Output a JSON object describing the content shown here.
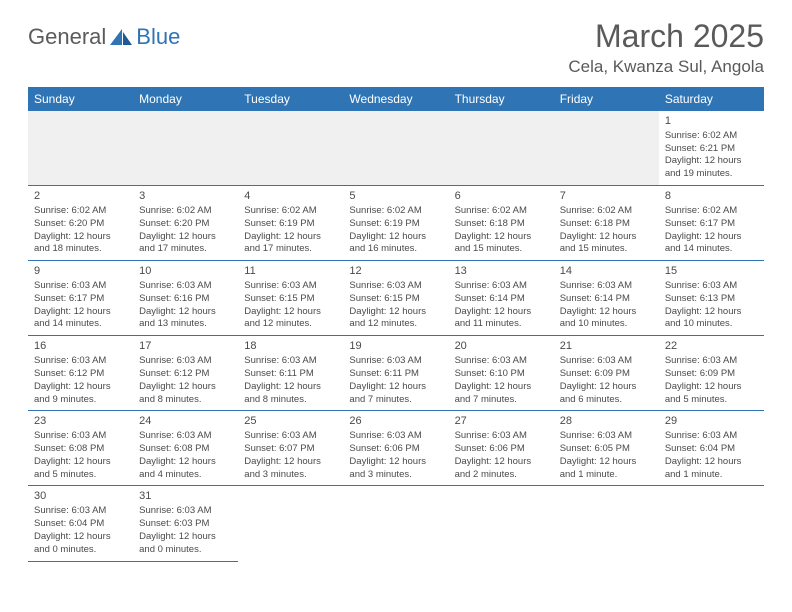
{
  "logo": {
    "text1": "General",
    "text2": "Blue"
  },
  "title": "March 2025",
  "location": "Cela, Kwanza Sul, Angola",
  "colors": {
    "header_bg": "#2f74b5",
    "header_text": "#ffffff",
    "text": "#4a4a4a",
    "border": "#2f74b5",
    "blank_bg": "#f0f0f0"
  },
  "weekdays": [
    "Sunday",
    "Monday",
    "Tuesday",
    "Wednesday",
    "Thursday",
    "Friday",
    "Saturday"
  ],
  "weeks": [
    [
      null,
      null,
      null,
      null,
      null,
      null,
      {
        "d": "1",
        "sr": "6:02 AM",
        "ss": "6:21 PM",
        "dl": "12 hours and 19 minutes."
      }
    ],
    [
      {
        "d": "2",
        "sr": "6:02 AM",
        "ss": "6:20 PM",
        "dl": "12 hours and 18 minutes."
      },
      {
        "d": "3",
        "sr": "6:02 AM",
        "ss": "6:20 PM",
        "dl": "12 hours and 17 minutes."
      },
      {
        "d": "4",
        "sr": "6:02 AM",
        "ss": "6:19 PM",
        "dl": "12 hours and 17 minutes."
      },
      {
        "d": "5",
        "sr": "6:02 AM",
        "ss": "6:19 PM",
        "dl": "12 hours and 16 minutes."
      },
      {
        "d": "6",
        "sr": "6:02 AM",
        "ss": "6:18 PM",
        "dl": "12 hours and 15 minutes."
      },
      {
        "d": "7",
        "sr": "6:02 AM",
        "ss": "6:18 PM",
        "dl": "12 hours and 15 minutes."
      },
      {
        "d": "8",
        "sr": "6:02 AM",
        "ss": "6:17 PM",
        "dl": "12 hours and 14 minutes."
      }
    ],
    [
      {
        "d": "9",
        "sr": "6:03 AM",
        "ss": "6:17 PM",
        "dl": "12 hours and 14 minutes."
      },
      {
        "d": "10",
        "sr": "6:03 AM",
        "ss": "6:16 PM",
        "dl": "12 hours and 13 minutes."
      },
      {
        "d": "11",
        "sr": "6:03 AM",
        "ss": "6:15 PM",
        "dl": "12 hours and 12 minutes."
      },
      {
        "d": "12",
        "sr": "6:03 AM",
        "ss": "6:15 PM",
        "dl": "12 hours and 12 minutes."
      },
      {
        "d": "13",
        "sr": "6:03 AM",
        "ss": "6:14 PM",
        "dl": "12 hours and 11 minutes."
      },
      {
        "d": "14",
        "sr": "6:03 AM",
        "ss": "6:14 PM",
        "dl": "12 hours and 10 minutes."
      },
      {
        "d": "15",
        "sr": "6:03 AM",
        "ss": "6:13 PM",
        "dl": "12 hours and 10 minutes."
      }
    ],
    [
      {
        "d": "16",
        "sr": "6:03 AM",
        "ss": "6:12 PM",
        "dl": "12 hours and 9 minutes."
      },
      {
        "d": "17",
        "sr": "6:03 AM",
        "ss": "6:12 PM",
        "dl": "12 hours and 8 minutes."
      },
      {
        "d": "18",
        "sr": "6:03 AM",
        "ss": "6:11 PM",
        "dl": "12 hours and 8 minutes."
      },
      {
        "d": "19",
        "sr": "6:03 AM",
        "ss": "6:11 PM",
        "dl": "12 hours and 7 minutes."
      },
      {
        "d": "20",
        "sr": "6:03 AM",
        "ss": "6:10 PM",
        "dl": "12 hours and 7 minutes."
      },
      {
        "d": "21",
        "sr": "6:03 AM",
        "ss": "6:09 PM",
        "dl": "12 hours and 6 minutes."
      },
      {
        "d": "22",
        "sr": "6:03 AM",
        "ss": "6:09 PM",
        "dl": "12 hours and 5 minutes."
      }
    ],
    [
      {
        "d": "23",
        "sr": "6:03 AM",
        "ss": "6:08 PM",
        "dl": "12 hours and 5 minutes."
      },
      {
        "d": "24",
        "sr": "6:03 AM",
        "ss": "6:08 PM",
        "dl": "12 hours and 4 minutes."
      },
      {
        "d": "25",
        "sr": "6:03 AM",
        "ss": "6:07 PM",
        "dl": "12 hours and 3 minutes."
      },
      {
        "d": "26",
        "sr": "6:03 AM",
        "ss": "6:06 PM",
        "dl": "12 hours and 3 minutes."
      },
      {
        "d": "27",
        "sr": "6:03 AM",
        "ss": "6:06 PM",
        "dl": "12 hours and 2 minutes."
      },
      {
        "d": "28",
        "sr": "6:03 AM",
        "ss": "6:05 PM",
        "dl": "12 hours and 1 minute."
      },
      {
        "d": "29",
        "sr": "6:03 AM",
        "ss": "6:04 PM",
        "dl": "12 hours and 1 minute."
      }
    ],
    [
      {
        "d": "30",
        "sr": "6:03 AM",
        "ss": "6:04 PM",
        "dl": "12 hours and 0 minutes."
      },
      {
        "d": "31",
        "sr": "6:03 AM",
        "ss": "6:03 PM",
        "dl": "12 hours and 0 minutes."
      },
      null,
      null,
      null,
      null,
      null
    ]
  ],
  "labels": {
    "sunrise": "Sunrise:",
    "sunset": "Sunset:",
    "daylight": "Daylight:"
  }
}
